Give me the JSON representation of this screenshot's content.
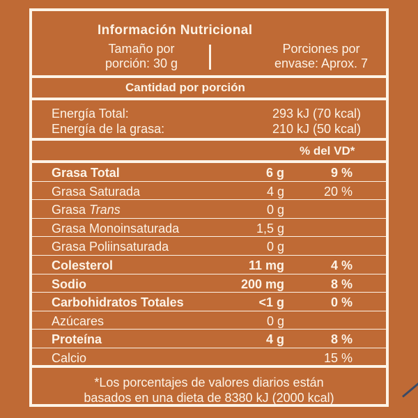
{
  "title": "Información Nutricional",
  "serving": {
    "size_line1": "Tamaño por",
    "size_line2": "porción: 30 g",
    "servings_line1": "Porciones por",
    "servings_line2": "envase: Aprox. 7"
  },
  "amount_header": "Cantidad por porción",
  "energy": {
    "total_label": "Energía Total:",
    "total_value": "293 kJ (70 kcal)",
    "fat_label": "Energía de la grasa:",
    "fat_value": "210 kJ (50 kcal)"
  },
  "dv_header": "% del VD*",
  "rows": [
    {
      "label": "Grasa Total",
      "qty": "6 g",
      "pct": "9 %",
      "bold": true
    },
    {
      "label": "Grasa Saturada",
      "qty": "4 g",
      "pct": "20 %",
      "bold": false
    },
    {
      "label_pre": "Grasa ",
      "label_italic": "Trans",
      "qty": "0 g",
      "pct": "",
      "bold": false
    },
    {
      "label": "Grasa Monoinsaturada",
      "qty": "1,5 g",
      "pct": "",
      "bold": false
    },
    {
      "label": "Grasa Poliinsaturada",
      "qty": "0 g",
      "pct": "",
      "bold": false
    },
    {
      "label": "Colesterol",
      "qty": "11 mg",
      "pct": "4 %",
      "bold": true
    },
    {
      "label": "Sodio",
      "qty": "200 mg",
      "pct": "8 %",
      "bold": true
    },
    {
      "label": "Carbohidratos Totales",
      "qty": "<1 g",
      "pct": "0 %",
      "bold": true
    },
    {
      "label": "Azúcares",
      "qty": "0 g",
      "pct": "",
      "bold": false
    },
    {
      "label": "Proteína",
      "qty": "4 g",
      "pct": "8 %",
      "bold": true
    },
    {
      "label": "Calcio",
      "qty": "",
      "pct": "15 %",
      "bold": false
    }
  ],
  "footnote_line1": "*Los porcentajes de valores diarios están",
  "footnote_line2": "basados en una dieta de 8380 kJ (2000 kcal)",
  "colors": {
    "background": "#bf6a35",
    "text": "#fdf3e6"
  }
}
